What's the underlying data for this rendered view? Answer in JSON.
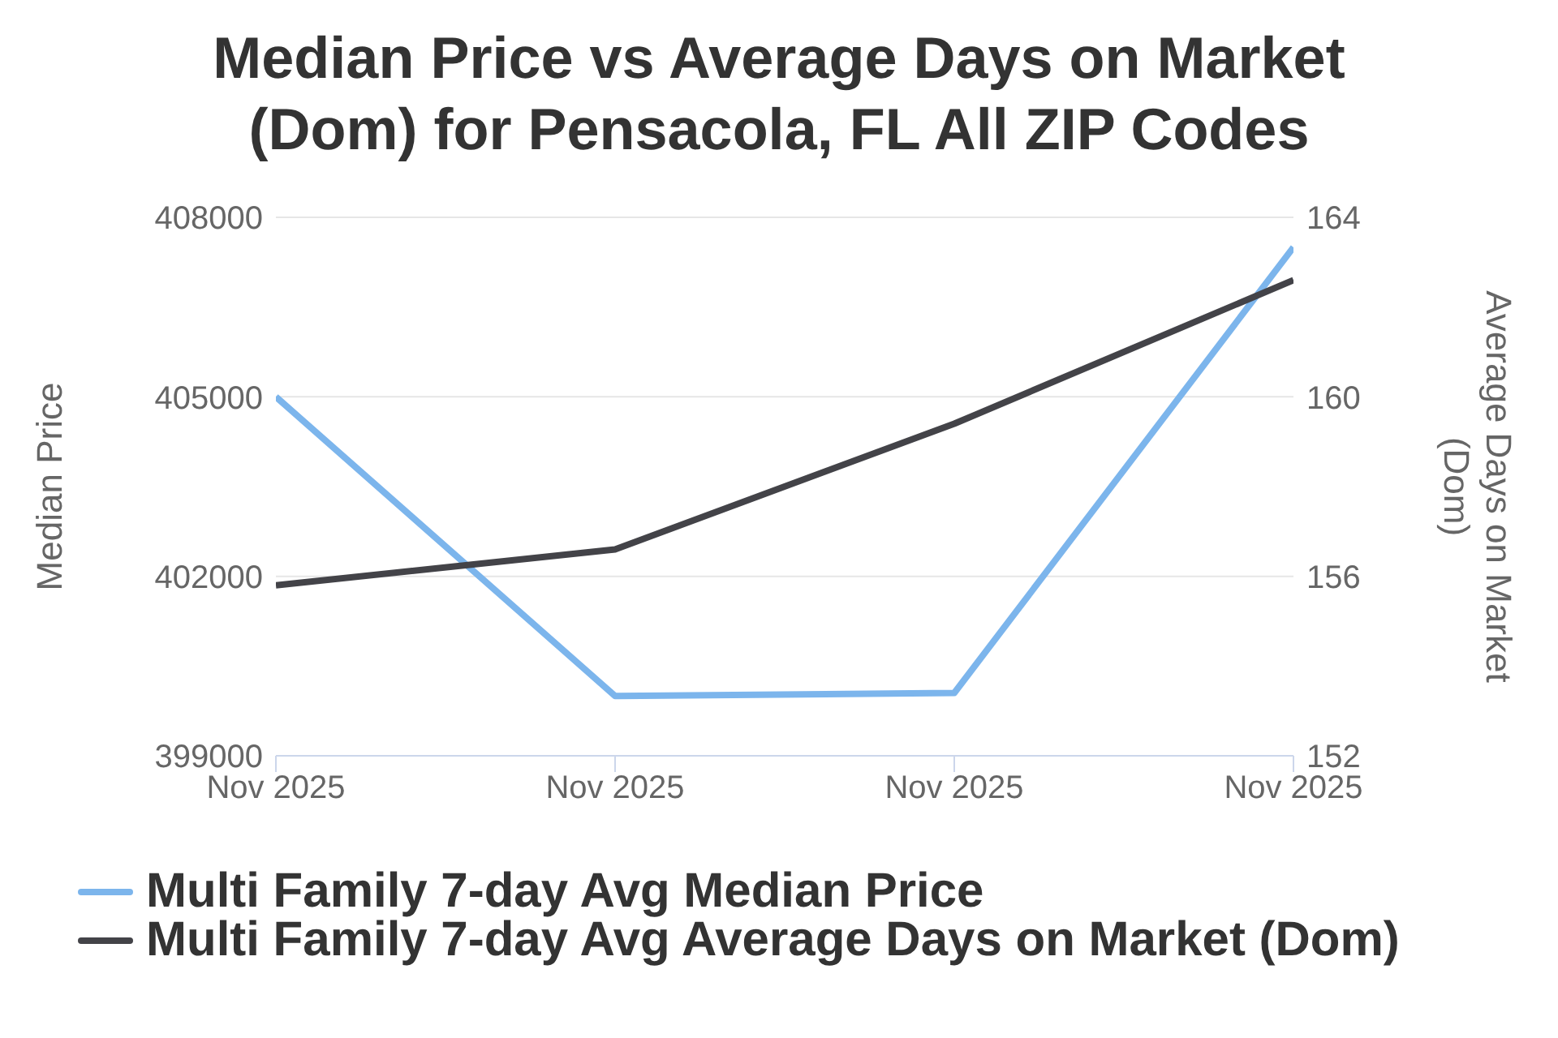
{
  "chart_data": {
    "type": "line",
    "title": "Median Price vs Average Days on Market (Dom) for Pensacola, FL All ZIP Codes",
    "ylabel": "Median Price",
    "y2label": "Average Days on Market (Dom)",
    "categories": [
      "Nov 2025",
      "Nov 2025",
      "Nov 2025",
      "Nov 2025"
    ],
    "series": [
      {
        "name": "Multi Family 7-day Avg Median Price",
        "color": "#7cb5ec",
        "values": [
          405000,
          400000,
          400050,
          407500
        ]
      },
      {
        "name": "Multi Family 7-day Avg Average Days on Market (Dom)",
        "color": "#434348",
        "values": [
          155.8,
          156.6,
          159.4,
          162.6
        ],
        "axis": "y2"
      }
    ],
    "ylim": [
      399000,
      408000
    ],
    "yticks": [
      399000,
      402000,
      405000,
      408000
    ],
    "y2lim": [
      152,
      164
    ],
    "y2ticks": [
      152,
      156,
      160,
      164
    ],
    "grid": "y",
    "legend": "bottom",
    "marker": "none",
    "line_style": "solid"
  }
}
